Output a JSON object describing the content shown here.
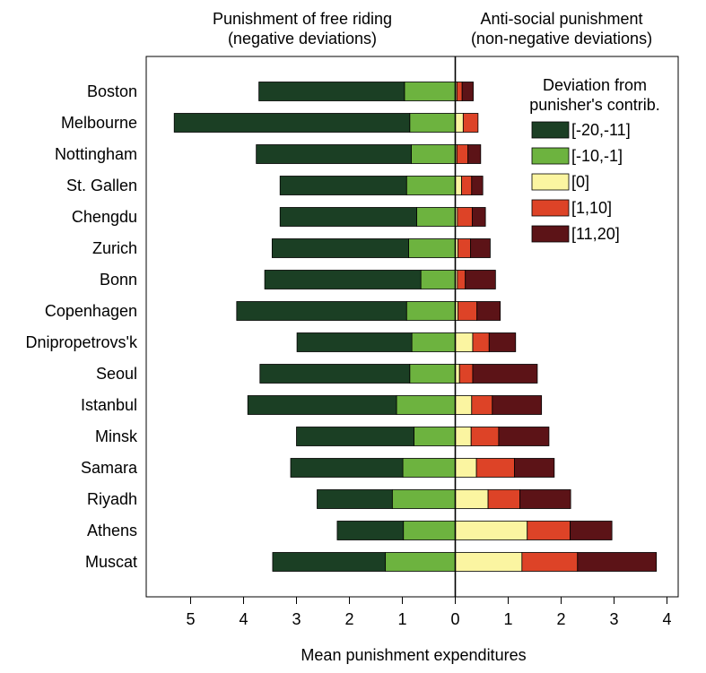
{
  "chart_data": {
    "type": "bar",
    "orientation": "horizontal",
    "stacked": true,
    "diverging": true,
    "left_title": [
      "Punishment of free riding",
      "(negative deviations)"
    ],
    "right_title": [
      "Anti-social punishment",
      "(non-negative deviations)"
    ],
    "xlabel": "Mean punishment expenditures",
    "xlim": [
      -5.5,
      4.3
    ],
    "x_ticks": [
      {
        "value": -5,
        "label": "5"
      },
      {
        "value": -4,
        "label": "4"
      },
      {
        "value": -3,
        "label": "3"
      },
      {
        "value": -2,
        "label": "2"
      },
      {
        "value": -1,
        "label": "1"
      },
      {
        "value": 0,
        "label": "0"
      },
      {
        "value": 1,
        "label": "1"
      },
      {
        "value": 2,
        "label": "2"
      },
      {
        "value": 3,
        "label": "3"
      },
      {
        "value": 4,
        "label": "4"
      }
    ],
    "legend_title": [
      "Deviation from",
      "punisher's contrib."
    ],
    "legend_position": "top-right",
    "series": [
      {
        "name": "[-20,-11]",
        "side": "left",
        "color": "#1b3f24"
      },
      {
        "name": "[-10,-1]",
        "side": "left",
        "color": "#6db33f"
      },
      {
        "name": "[0]",
        "side": "right",
        "color": "#fbf5a1"
      },
      {
        "name": "[1,10]",
        "side": "right",
        "color": "#dd4327"
      },
      {
        "name": "[11,20]",
        "side": "right",
        "color": "#5c1317"
      }
    ],
    "categories": [
      "Boston",
      "Melbourne",
      "Nottingham",
      "St. Gallen",
      "Chengdu",
      "Zurich",
      "Bonn",
      "Copenhagen",
      "Dnipropetrovs'k",
      "Seoul",
      "Istanbul",
      "Minsk",
      "Samara",
      "Riyadh",
      "Athens",
      "Muscat"
    ],
    "values": {
      "[-20,-11]": [
        2.75,
        4.45,
        2.93,
        2.39,
        2.58,
        2.58,
        2.95,
        3.21,
        2.17,
        2.83,
        2.81,
        2.22,
        2.12,
        1.42,
        1.25,
        2.13
      ],
      "[-10,-1]": [
        0.96,
        0.86,
        0.83,
        0.92,
        0.73,
        0.88,
        0.65,
        0.92,
        0.82,
        0.86,
        1.11,
        0.78,
        0.99,
        1.19,
        0.98,
        1.32
      ],
      "[0]": [
        0.03,
        0.15,
        0.03,
        0.12,
        0.04,
        0.05,
        0.04,
        0.05,
        0.33,
        0.08,
        0.31,
        0.3,
        0.4,
        0.62,
        1.36,
        1.26
      ],
      "[1,10]": [
        0.1,
        0.28,
        0.21,
        0.19,
        0.28,
        0.24,
        0.15,
        0.36,
        0.31,
        0.25,
        0.39,
        0.52,
        0.72,
        0.6,
        0.81,
        1.05
      ],
      "[11,20]": [
        0.21,
        0.0,
        0.24,
        0.21,
        0.25,
        0.37,
        0.57,
        0.44,
        0.5,
        1.22,
        0.93,
        0.95,
        0.75,
        0.96,
        0.79,
        1.49
      ]
    },
    "grid": false
  }
}
